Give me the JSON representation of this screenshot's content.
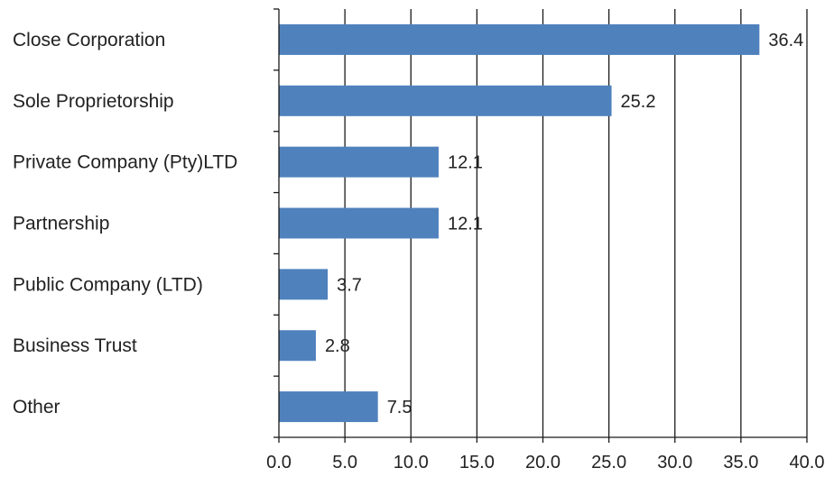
{
  "chart_data": {
    "type": "bar",
    "orientation": "horizontal",
    "categories": [
      "Close Corporation",
      "Sole Proprietorship",
      "Private Company (Pty)LTD",
      "Partnership",
      "Public Company (LTD)",
      "Business Trust",
      "Other"
    ],
    "values": [
      36.4,
      25.2,
      12.1,
      12.1,
      3.7,
      2.8,
      7.5
    ],
    "data_labels": [
      "36.4",
      "25.2",
      "12.1",
      "12.1",
      "3.7",
      "2.8",
      "7.5"
    ],
    "xlim": [
      0,
      40
    ],
    "xticks": [
      "0.0",
      "5.0",
      "10.0",
      "15.0",
      "20.0",
      "25.0",
      "30.0",
      "35.0",
      "40.0"
    ],
    "title": "",
    "xlabel": "",
    "ylabel": "",
    "grid": "vertical",
    "legend": "none",
    "colors": {
      "bar": "#4f81bd",
      "grid": "#1a1a1a",
      "axis": "#1a1a1a"
    }
  }
}
